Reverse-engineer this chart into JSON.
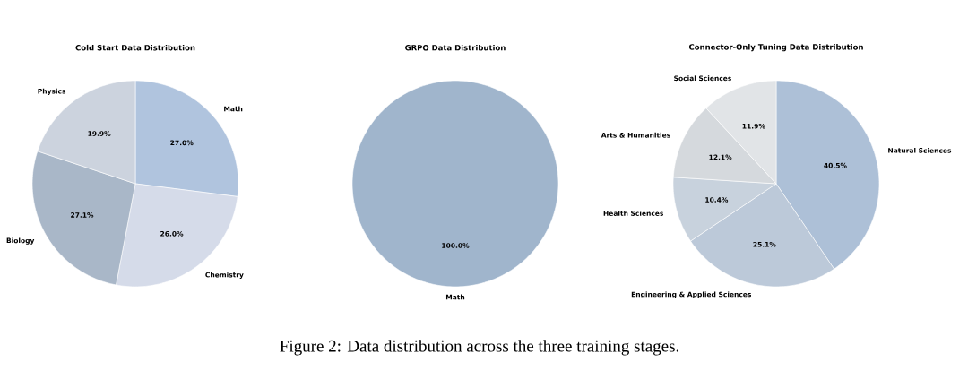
{
  "chart_data": [
    {
      "type": "pie",
      "title": "Cold Start Data Distribution",
      "categories": [
        "Math",
        "Chemistry",
        "Biology",
        "Physics"
      ],
      "values": [
        27.0,
        26.0,
        27.1,
        19.9
      ],
      "value_labels": [
        "27.0%",
        "26.0%",
        "27.1%",
        "19.9%"
      ],
      "colors": [
        "#b0c4de",
        "#d5dbe9",
        "#a9b7c8",
        "#ccd3de"
      ]
    },
    {
      "type": "pie",
      "title": "GRPO Data Distribution",
      "categories": [
        "Math"
      ],
      "values": [
        100.0
      ],
      "value_labels": [
        "100.0%"
      ],
      "colors": [
        "#a0b5cc"
      ],
      "annotations": [
        "Figure 2: Data distribution across the three training stages."
      ]
    },
    {
      "type": "pie",
      "title": "Connector-Only Tuning Data Distribution",
      "categories": [
        "Natural Sciences",
        "Engineering & Applied Sciences",
        "Health Sciences",
        "Arts & Humanities",
        "Social Sciences"
      ],
      "values": [
        40.5,
        25.1,
        10.4,
        12.1,
        11.9
      ],
      "value_labels": [
        "40.5%",
        "25.1%",
        "10.4%",
        "12.1%",
        "11.9%"
      ],
      "colors": [
        "#adc0d7",
        "#bcc9d9",
        "#c8d2dd",
        "#d5d9dd",
        "#e1e4e7"
      ]
    }
  ]
}
